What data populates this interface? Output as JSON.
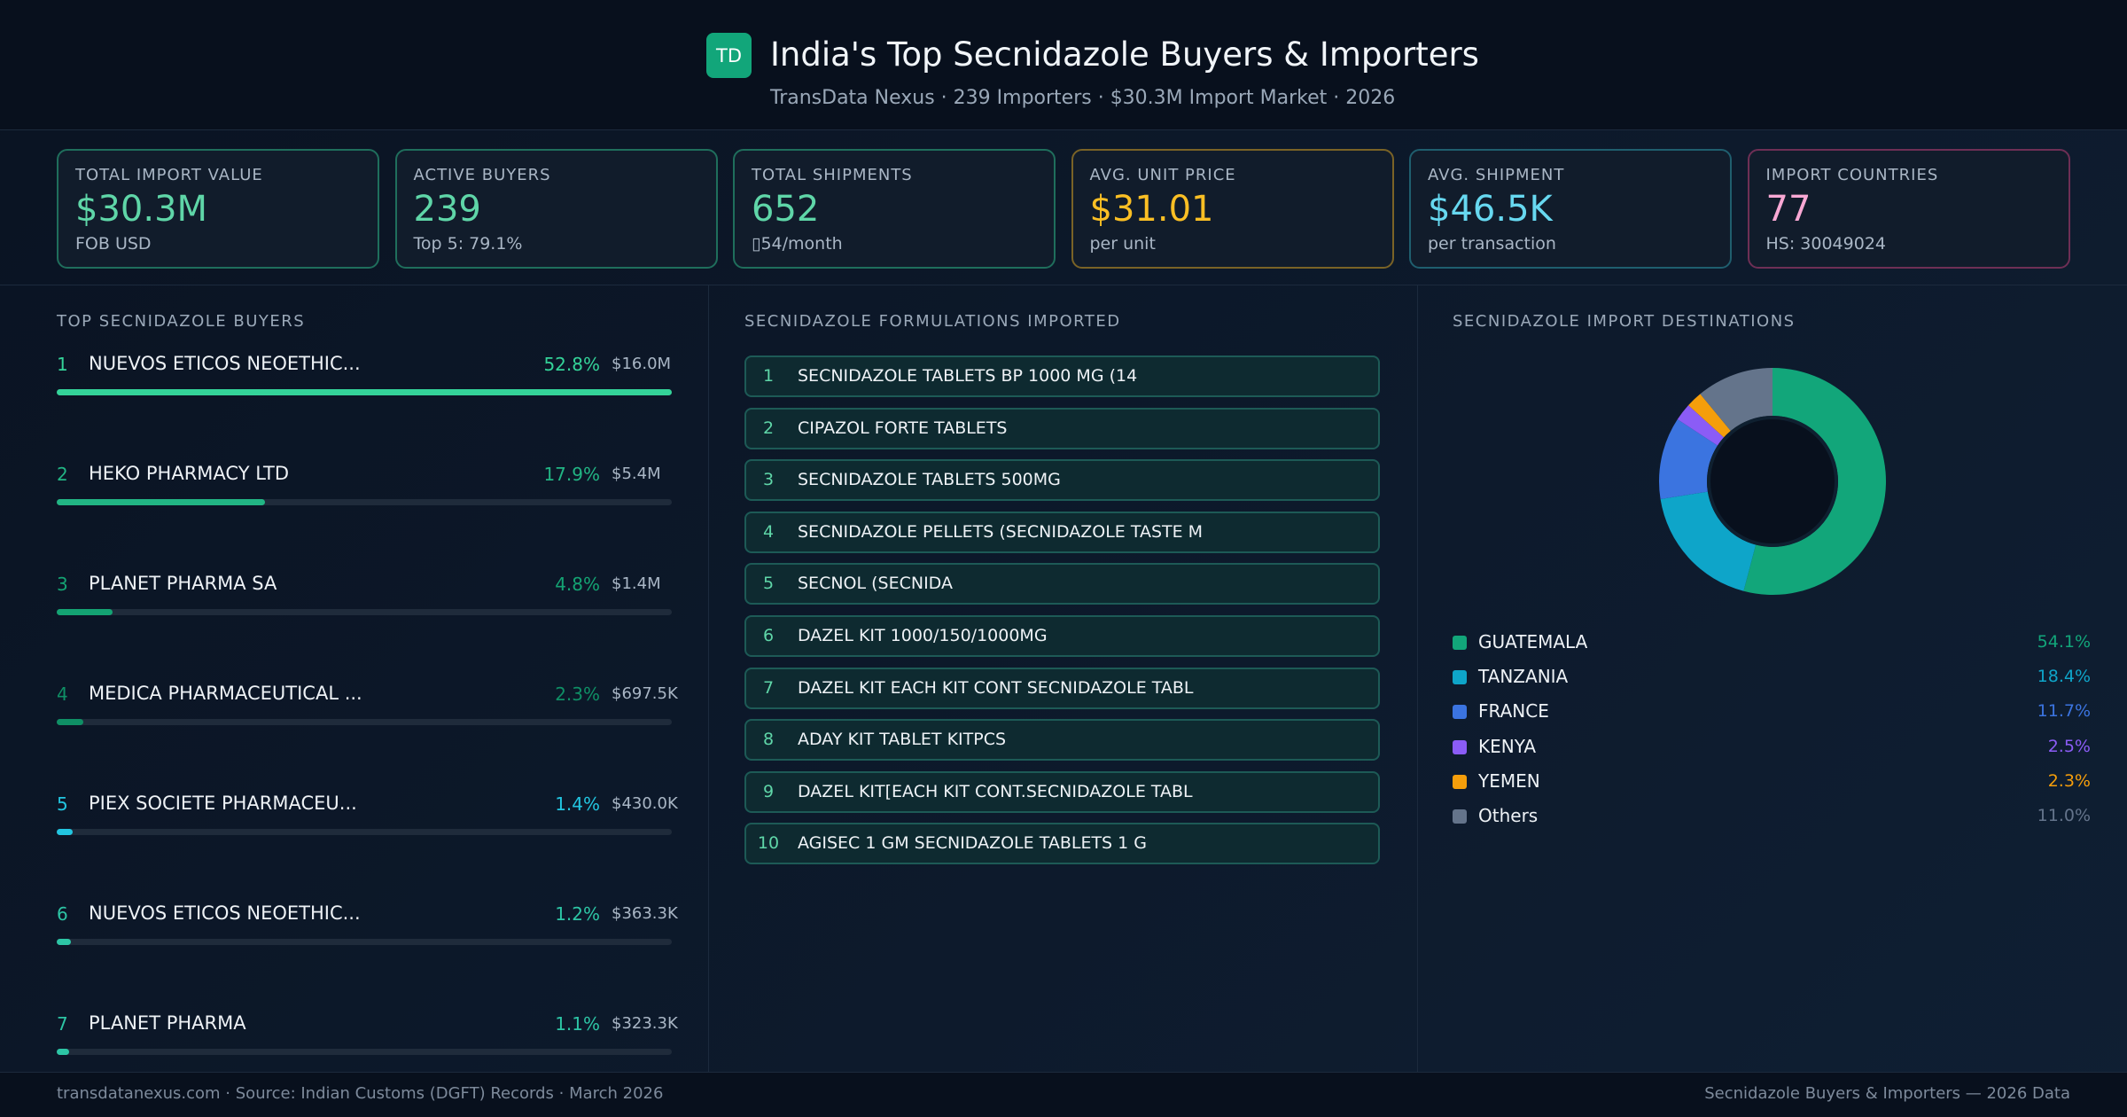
{
  "header": {
    "logo": "TD",
    "title": "India's Top Secnidazole Buyers & Importers",
    "subtitle": "TransData Nexus · 239 Importers · $30.3M Import Market · 2026"
  },
  "kpis": [
    {
      "label": "TOTAL IMPORT VALUE",
      "value": "$30.3M",
      "sub": "FOB USD",
      "color": "#5fd6a8",
      "border": "#1f6e5c"
    },
    {
      "label": "ACTIVE BUYERS",
      "value": "239",
      "sub": "Top 5: 79.1%",
      "color": "#5fd6a8",
      "border": "#1f6e5c"
    },
    {
      "label": "TOTAL SHIPMENTS",
      "value": "652",
      "sub": "▯54/month",
      "color": "#5fd6a8",
      "border": "#1f6e5c"
    },
    {
      "label": "AVG. UNIT PRICE",
      "value": "$31.01",
      "sub": "per unit",
      "color": "#fbbf24",
      "border": "#7a6326"
    },
    {
      "label": "AVG. SHIPMENT",
      "value": "$46.5K",
      "sub": "per transaction",
      "color": "#67d8f0",
      "border": "#1f5e6e"
    },
    {
      "label": "IMPORT COUNTRIES",
      "value": "77",
      "sub": "HS: 30049024",
      "color": "#f9a8d4",
      "border": "#6e2f55"
    }
  ],
  "buyers": {
    "title": "TOP SECNIDAZOLE BUYERS",
    "rows": [
      {
        "rank": "1",
        "name": "NUEVOS ETICOS NEOETHIC...",
        "share": 52.8,
        "share_label": "52.8%",
        "value": "$16.0M",
        "color": "#34d399"
      },
      {
        "rank": "2",
        "name": "HEKO PHARMACY LTD",
        "share": 17.9,
        "share_label": "17.9%",
        "value": "$5.4M",
        "color": "#22b584"
      },
      {
        "rank": "3",
        "name": "PLANET PHARMA SA",
        "share": 4.8,
        "share_label": "4.8%",
        "value": "$1.4M",
        "color": "#14a373"
      },
      {
        "rank": "4",
        "name": "MEDICA PHARMACEUTICAL ...",
        "share": 2.3,
        "share_label": "2.3%",
        "value": "$697.5K",
        "color": "#0f8f65"
      },
      {
        "rank": "5",
        "name": "PIEX SOCIETE PHARMACEU...",
        "share": 1.4,
        "share_label": "1.4%",
        "value": "$430.0K",
        "color": "#22c5e0"
      },
      {
        "rank": "6",
        "name": "NUEVOS ETICOS NEOETHIC...",
        "share": 1.2,
        "share_label": "1.2%",
        "value": "$363.3K",
        "color": "#2dc5a5"
      },
      {
        "rank": "7",
        "name": "PLANET PHARMA",
        "share": 1.1,
        "share_label": "1.1%",
        "value": "$323.3K",
        "color": "#2dc5a5"
      }
    ]
  },
  "formulations": {
    "title": "SECNIDAZOLE FORMULATIONS IMPORTED",
    "rows": [
      {
        "rank": "1",
        "name": "SECNIDAZOLE TABLETS BP 1000 MG (14"
      },
      {
        "rank": "2",
        "name": "CIPAZOL FORTE TABLETS"
      },
      {
        "rank": "3",
        "name": "SECNIDAZOLE TABLETS 500MG"
      },
      {
        "rank": "4",
        "name": "SECNIDAZOLE PELLETS (SECNIDAZOLE TASTE M"
      },
      {
        "rank": "5",
        "name": "SECNOL (SECNIDA"
      },
      {
        "rank": "6",
        "name": "DAZEL KIT 1000/150/1000MG"
      },
      {
        "rank": "7",
        "name": "DAZEL KIT EACH KIT CONT SECNIDAZOLE TABL"
      },
      {
        "rank": "8",
        "name": "ADAY KIT TABLET KITPCS"
      },
      {
        "rank": "9",
        "name": "DAZEL KIT[EACH KIT CONT.SECNIDAZOLE TABL"
      },
      {
        "rank": "10",
        "name": "AGISEC 1 GM SECNIDAZOLE TABLETS 1 G"
      }
    ]
  },
  "destinations": {
    "title": "SECNIDAZOLE IMPORT DESTINATIONS",
    "rows": [
      {
        "name": "GUATEMALA",
        "share": 54.1,
        "share_label": "54.1%",
        "color": "#12a67a"
      },
      {
        "name": "TANZANIA",
        "share": 18.4,
        "share_label": "18.4%",
        "color": "#0ea5c9"
      },
      {
        "name": "FRANCE",
        "share": 11.7,
        "share_label": "11.7%",
        "color": "#3b74e0"
      },
      {
        "name": "KENYA",
        "share": 2.5,
        "share_label": "2.5%",
        "color": "#8b5cf6"
      },
      {
        "name": "YEMEN",
        "share": 2.3,
        "share_label": "2.3%",
        "color": "#f59e0b"
      },
      {
        "name": "Others",
        "share": 11.0,
        "share_label": "11.0%",
        "color": "#64748b"
      }
    ]
  },
  "footer": {
    "left": "transdatanexus.com · Source: Indian Customs (DGFT) Records · March 2026",
    "right": "Secnidazole Buyers & Importers — 2026 Data"
  }
}
